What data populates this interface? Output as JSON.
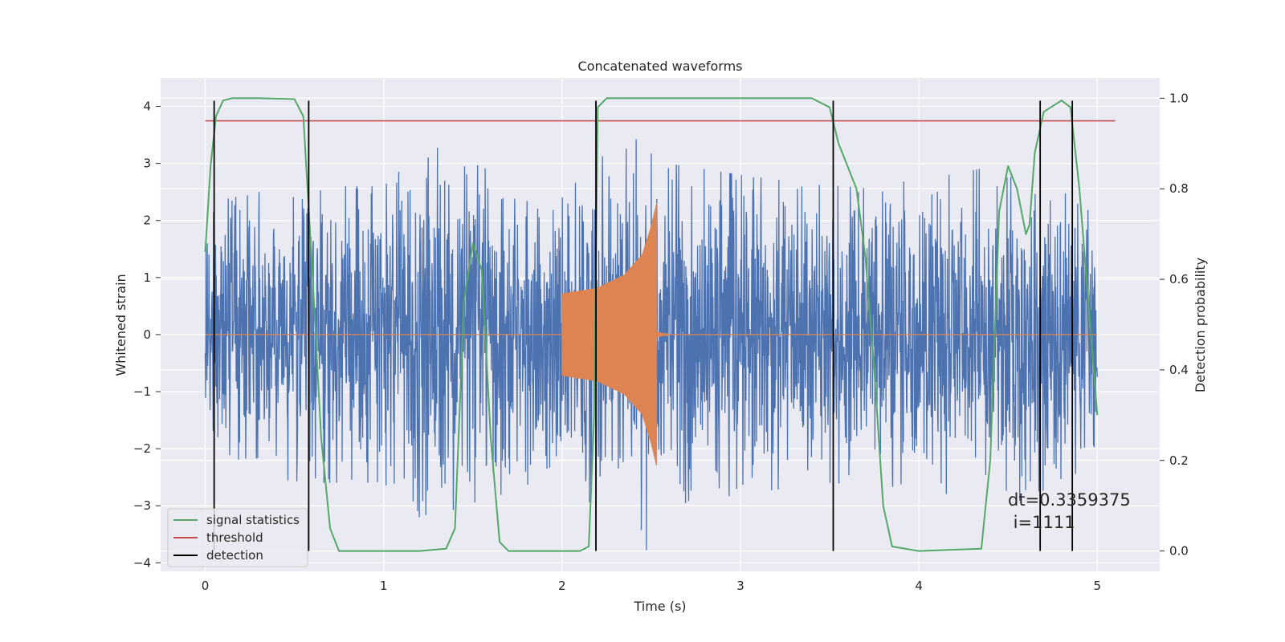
{
  "chart_data": {
    "type": "line",
    "title": "Concatenated waveforms",
    "xlabel": "Time (s)",
    "ylabel": "Whitened strain",
    "y2label": "Detection probability",
    "xlim": [
      -0.25,
      5.35
    ],
    "ylim": [
      -4.15,
      4.5
    ],
    "y2lim": [
      -0.045,
      1.045
    ],
    "xticks": [
      "0",
      "1",
      "2",
      "3",
      "4",
      "5"
    ],
    "yticks": [
      "4",
      "3",
      "2",
      "1",
      "0",
      "−1",
      "−2",
      "−3",
      "−4"
    ],
    "y2ticks": [
      "1.0",
      "0.8",
      "0.6",
      "0.4",
      "0.2",
      "0.0"
    ],
    "grid": true,
    "legend_position": "lower-left",
    "legend": [
      "signal statistics",
      "threshold",
      "detection"
    ],
    "colors": {
      "noise": "#4c72b0",
      "waveform": "#dd8452",
      "signal_statistics": "#55a868",
      "threshold": "#c44e52",
      "detection": "#000000",
      "background": "#eaeaf2"
    },
    "series": [
      {
        "name": "noise",
        "axis": "left",
        "t_start": 0,
        "t_end": 5.0,
        "amplitude_envelope": [
          [
            0.0,
            2.3
          ],
          [
            0.3,
            2.5
          ],
          [
            0.6,
            2.6
          ],
          [
            1.0,
            2.6
          ],
          [
            1.3,
            3.5
          ],
          [
            1.5,
            3.0
          ],
          [
            2.0,
            2.4
          ],
          [
            2.2,
            3.1
          ],
          [
            2.4,
            3.3
          ],
          [
            2.5,
            4.1
          ],
          [
            2.6,
            3.0
          ],
          [
            3.0,
            2.8
          ],
          [
            3.5,
            2.6
          ],
          [
            4.0,
            2.7
          ],
          [
            4.5,
            3.0
          ],
          [
            4.8,
            2.6
          ],
          [
            5.0,
            2.2
          ]
        ]
      },
      {
        "name": "waveform",
        "axis": "left",
        "segments": [
          {
            "t_start": 0,
            "t_end": 2.0,
            "value": 0
          },
          {
            "t_start": 2.0,
            "t_end": 2.53,
            "envelope": [
              [
                2.0,
                0.72
              ],
              [
                2.2,
                0.82
              ],
              [
                2.35,
                1.05
              ],
              [
                2.45,
                1.4
              ],
              [
                2.5,
                1.9
              ],
              [
                2.53,
                2.3
              ]
            ]
          },
          {
            "t_start": 2.53,
            "t_end": 2.6,
            "ringdown": 0.05
          },
          {
            "t_start": 2.6,
            "t_end": 5.0,
            "value": 0
          }
        ]
      },
      {
        "name": "signal statistics",
        "axis": "right",
        "x": [
          0.0,
          0.03,
          0.06,
          0.1,
          0.15,
          0.3,
          0.5,
          0.55,
          0.6,
          0.65,
          0.7,
          0.75,
          0.8,
          1.0,
          1.2,
          1.35,
          1.4,
          1.45,
          1.5,
          1.55,
          1.6,
          1.65,
          1.7,
          2.1,
          2.15,
          2.18,
          2.2,
          2.25,
          2.3,
          3.4,
          3.5,
          3.55,
          3.6,
          3.65,
          3.7,
          3.75,
          3.8,
          3.85,
          4.0,
          4.35,
          4.4,
          4.45,
          4.5,
          4.55,
          4.6,
          4.62,
          4.65,
          4.7,
          4.8,
          4.85,
          4.9,
          5.0
        ],
        "y": [
          0.66,
          0.85,
          0.96,
          0.995,
          1.0,
          1.0,
          0.998,
          0.96,
          0.62,
          0.25,
          0.05,
          0.0,
          0.0,
          0.0,
          0.0,
          0.005,
          0.05,
          0.55,
          0.68,
          0.62,
          0.25,
          0.02,
          0.0,
          0.0,
          0.01,
          0.3,
          0.98,
          1.0,
          1.0,
          1.0,
          0.98,
          0.9,
          0.85,
          0.8,
          0.65,
          0.4,
          0.1,
          0.01,
          0.0,
          0.005,
          0.2,
          0.75,
          0.85,
          0.8,
          0.7,
          0.72,
          0.88,
          0.97,
          0.995,
          0.98,
          0.8,
          0.3
        ]
      },
      {
        "name": "threshold",
        "axis": "right",
        "x": [
          0,
          5.1
        ],
        "y": [
          0.95,
          0.95
        ]
      }
    ],
    "detections": [
      0.05,
      0.58,
      2.19,
      3.52,
      4.68,
      4.86
    ],
    "annotation": {
      "line1": "dt=0.3359375",
      "line2": " i=1111"
    }
  }
}
